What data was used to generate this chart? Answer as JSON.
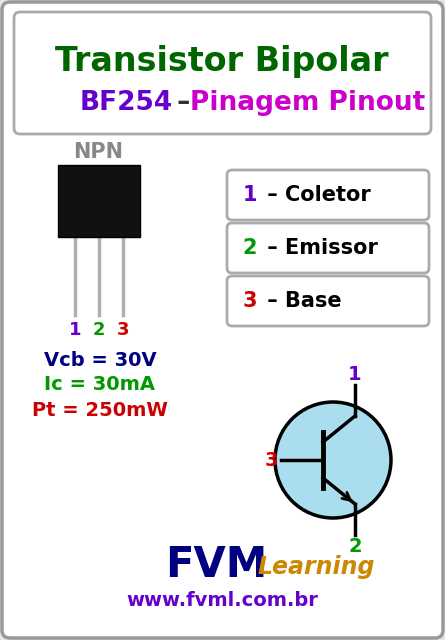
{
  "bg_color": "#e8e8e8",
  "outer_border_color": "#888888",
  "title1": "Transistor Bipolar",
  "title1_color": "#006600",
  "t2_bf254": "BF254",
  "t2_dash": " – ",
  "t2_pinagem": "Pinagem Pinout",
  "t2_bf254_color": "#6600cc",
  "t2_dash_color": "#333333",
  "t2_pinagem_color": "#cc00cc",
  "npn_label": "NPN",
  "npn_color": "#888888",
  "pin_labels": [
    {
      "num": "1",
      "color": "#6600cc"
    },
    {
      "num": "2",
      "color": "#009900"
    },
    {
      "num": "3",
      "color": "#cc0000"
    }
  ],
  "box_texts": [
    {
      "num": "1",
      "rest": " – Coletor",
      "num_color": "#6600cc"
    },
    {
      "num": "2",
      "rest": " – Emissor",
      "num_color": "#009900"
    },
    {
      "num": "3",
      "rest": " – Base",
      "num_color": "#cc0000"
    }
  ],
  "specs": [
    {
      "text": "Vcb = 30V",
      "color": "#000080"
    },
    {
      "text": "Ic = 30mA",
      "color": "#009900"
    },
    {
      "text": "Pt = 250mW",
      "color": "#cc0000"
    }
  ],
  "transistor_circle_color": "#aaddee",
  "transistor_circle_edge": "#000000",
  "fvm_color": "#000080",
  "learning_color": "#cc8800",
  "url_color": "#6600cc",
  "url_text": "www.fvml.com.br"
}
